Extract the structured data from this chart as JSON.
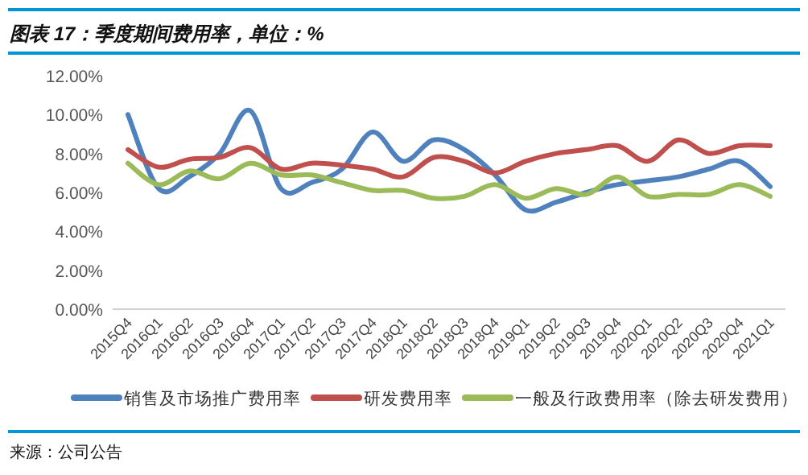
{
  "chart_data": {
    "type": "line",
    "title": "图表 17：季度期间费用率，单位：%",
    "categories": [
      "2015Q4",
      "2016Q1",
      "2016Q2",
      "2016Q3",
      "2016Q4",
      "2017Q1",
      "2017Q2",
      "2017Q3",
      "2017Q4",
      "2018Q1",
      "2018Q2",
      "2018Q3",
      "2018Q4",
      "2019Q1",
      "2019Q2",
      "2019Q3",
      "2019Q4",
      "2020Q1",
      "2020Q2",
      "2020Q3",
      "2020Q4",
      "2021Q1"
    ],
    "series": [
      {
        "name": "销售及市场推广费用率",
        "color": "#4f81bd",
        "values": [
          10.0,
          6.2,
          6.8,
          8.0,
          10.2,
          6.2,
          6.5,
          7.2,
          9.1,
          7.6,
          8.7,
          8.2,
          6.9,
          5.1,
          5.5,
          6.0,
          6.4,
          6.6,
          6.8,
          7.2,
          7.6,
          6.3
        ]
      },
      {
        "name": "研发费用率",
        "color": "#c0504d",
        "values": [
          8.2,
          7.3,
          7.7,
          7.8,
          8.3,
          7.2,
          7.5,
          7.4,
          7.2,
          6.8,
          7.8,
          7.6,
          7.0,
          7.6,
          8.0,
          8.2,
          8.4,
          7.6,
          8.7,
          8.0,
          8.4,
          8.4
        ]
      },
      {
        "name": "一般及行政费用率（除去研发费用）",
        "color": "#9bbb59",
        "values": [
          7.5,
          6.4,
          7.1,
          6.7,
          7.5,
          6.9,
          6.9,
          6.5,
          6.1,
          6.1,
          5.7,
          5.8,
          6.4,
          5.7,
          6.2,
          5.9,
          6.8,
          5.8,
          5.9,
          5.9,
          6.4,
          5.8
        ]
      }
    ],
    "ylim": [
      0,
      12
    ],
    "yticks": [
      {
        "value": 0,
        "label": "0.00%"
      },
      {
        "value": 2,
        "label": "2.00%"
      },
      {
        "value": 4,
        "label": "4.00%"
      },
      {
        "value": 6,
        "label": "6.00%"
      },
      {
        "value": 8,
        "label": "8.00%"
      },
      {
        "value": 10,
        "label": "10.00%"
      },
      {
        "value": 12,
        "label": "12.00%"
      }
    ],
    "grid": false,
    "legend": "bottom",
    "annotations": [
      "来源：公司公告"
    ]
  }
}
